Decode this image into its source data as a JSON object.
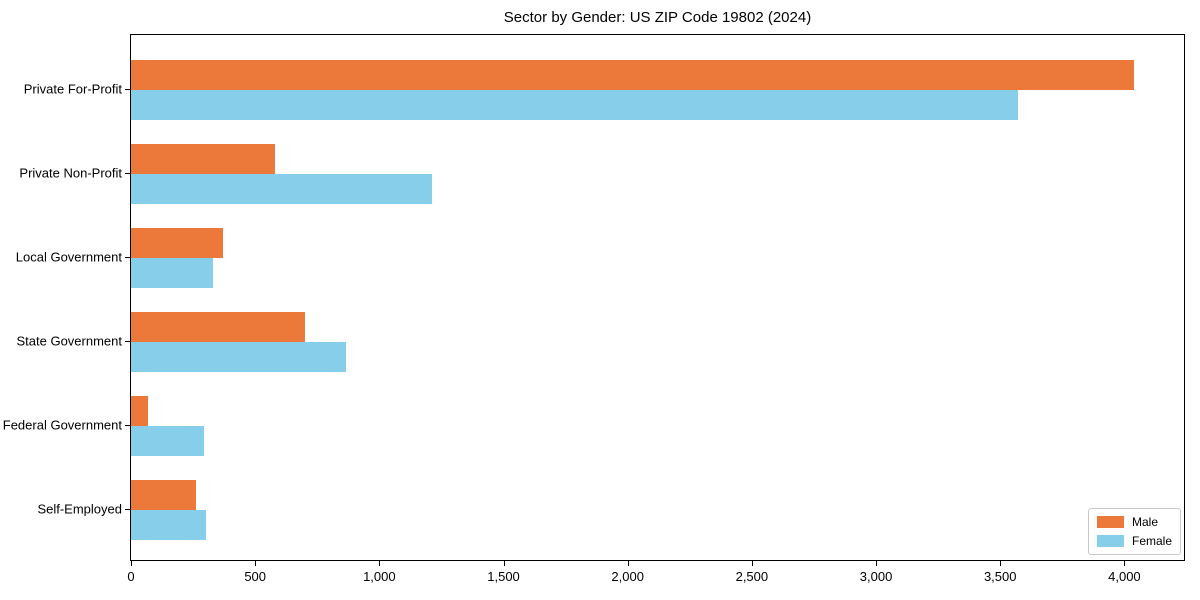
{
  "page": {
    "background_color": "#ffffff",
    "text_color": "#000000"
  },
  "chart_data": {
    "type": "bar",
    "orientation": "horizontal",
    "title": "Sector by Gender: US ZIP Code 19802 (2024)",
    "categories": [
      "Private For-Profit",
      "Private Non-Profit",
      "Local Government",
      "State Government",
      "Federal Government",
      "Self-Employed"
    ],
    "series": [
      {
        "name": "Male",
        "color": "#ec7839",
        "values": [
          4040,
          580,
          370,
          700,
          70,
          260
        ]
      },
      {
        "name": "Female",
        "color": "#87ceeb",
        "values": [
          3570,
          1210,
          330,
          865,
          295,
          300
        ]
      }
    ],
    "xlabel": "",
    "ylabel": "",
    "xlim": [
      0,
      4240
    ],
    "xticks": [
      0,
      500,
      1000,
      1500,
      2000,
      2500,
      3000,
      3500,
      4000
    ],
    "xtick_labels": [
      "0",
      "500",
      "1,000",
      "1,500",
      "2,000",
      "2,500",
      "3,000",
      "3,500",
      "4,000"
    ],
    "grid": false,
    "legend": {
      "position": "lower right"
    }
  }
}
